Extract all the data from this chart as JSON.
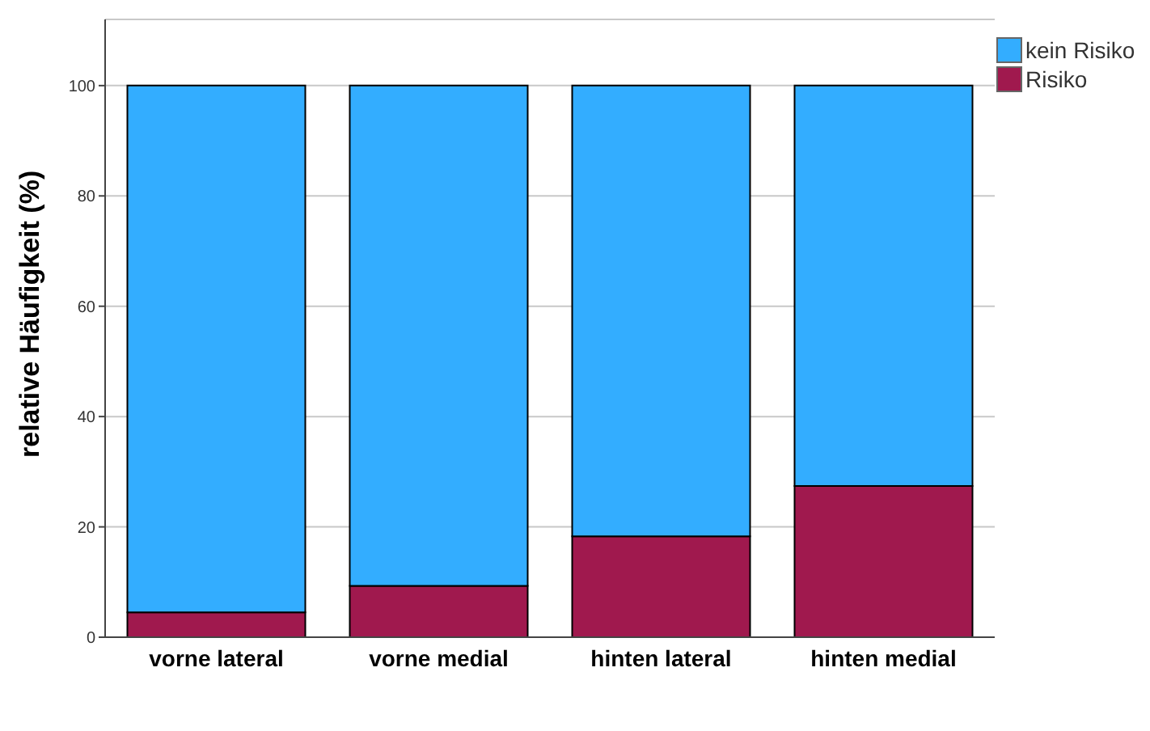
{
  "chart_data": {
    "type": "bar",
    "stacked": true,
    "ylabel": "relative Häufigkeit (%)",
    "categories": [
      "vorne lateral",
      "vorne medial",
      "hinten lateral",
      "hinten medial"
    ],
    "series": [
      {
        "name": "Risiko",
        "color": "#a0194e",
        "values": [
          4.5,
          9.3,
          18.3,
          27.4
        ]
      },
      {
        "name": "kein Risiko",
        "color": "#33adff",
        "values": [
          95.5,
          90.7,
          81.7,
          72.6
        ]
      }
    ],
    "ylim": [
      0,
      112
    ],
    "yticks": [
      0,
      20,
      40,
      60,
      80,
      100
    ],
    "grid": "y",
    "legend": "top right"
  }
}
